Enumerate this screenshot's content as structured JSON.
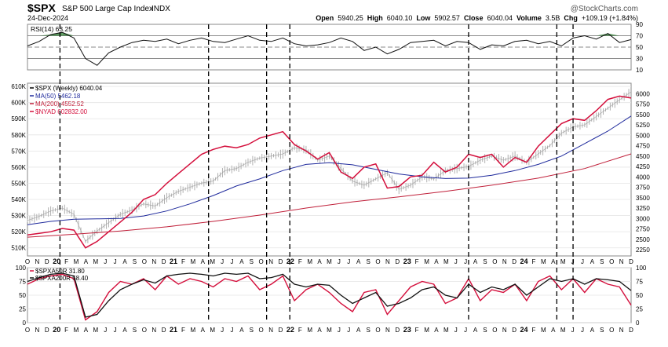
{
  "header": {
    "symbol": "$SPX",
    "name": "S&P 500 Large Cap Index",
    "exchange": "INDX",
    "date": "24-Dec-2024",
    "brand": "@StockCharts.com",
    "quote": {
      "open_label": "Open",
      "open": "5940.25",
      "high_label": "High",
      "high": "6040.10",
      "low_label": "Low",
      "low": "5902.57",
      "close_label": "Close",
      "close": "6040.04",
      "volume_label": "Volume",
      "volume": "3.5B",
      "chg_label": "Chg",
      "chg": "+109.19 (+1.84%)"
    }
  },
  "colors": {
    "price": "#b0b0b0",
    "ma50": "#1f2a9c",
    "ma200": "#c0203a",
    "nyad": "#d40f3c",
    "rsi": "#111111",
    "rsi_fill": "#2e7d32",
    "above50": "#d40f3c",
    "above200": "#111111",
    "grid": "#e4e4e4",
    "vline": "#000000"
  },
  "chart_data": [
    {
      "type": "line",
      "panel": "rsi",
      "legend": [
        {
          "label": "RSI(14) 63.25"
        }
      ],
      "ylim": [
        10,
        90
      ],
      "y_ticks": [
        10,
        30,
        50,
        70,
        90
      ],
      "reference_lines": [
        30,
        50,
        70
      ],
      "x": [
        0,
        5,
        10,
        15,
        20,
        25,
        30,
        35,
        40,
        45,
        50,
        55,
        60,
        65,
        70,
        75,
        80,
        85,
        90,
        95,
        100,
        105,
        110,
        115,
        120,
        125,
        130,
        135,
        140,
        145,
        150,
        155,
        160,
        165,
        170,
        175,
        180,
        185,
        190,
        195,
        200,
        205,
        210,
        215,
        220,
        225,
        230,
        235,
        240,
        245,
        250,
        255,
        260
      ],
      "values": [
        52,
        60,
        72,
        76,
        66,
        30,
        18,
        40,
        50,
        58,
        62,
        60,
        64,
        56,
        62,
        66,
        60,
        58,
        64,
        70,
        62,
        60,
        66,
        56,
        52,
        54,
        58,
        66,
        60,
        44,
        50,
        38,
        46,
        58,
        60,
        62,
        52,
        60,
        58,
        46,
        54,
        52,
        60,
        62,
        56,
        60,
        52,
        66,
        70,
        64,
        74,
        58,
        63.25
      ]
    },
    {
      "type": "line",
      "panel": "price",
      "legend": [
        {
          "label": "$SPX (Weekly) 6040.04",
          "series": "SPX"
        },
        {
          "label": "MA(50) 5462.18",
          "series": "MA(50)"
        },
        {
          "label": "MA(200) 4552.52",
          "series": "MA(200)"
        },
        {
          "label": "$NYAD 602832.00",
          "series": "$NYAD"
        }
      ],
      "left_axis": {
        "ylim": [
          505,
          612
        ],
        "ticks": [
          "510K",
          "520K",
          "530K",
          "540K",
          "550K",
          "560K",
          "570K",
          "580K",
          "590K",
          "600K",
          "610K"
        ]
      },
      "right_axis": {
        "ylim": [
          2100,
          6250
        ],
        "ticks": [
          "2250",
          "2500",
          "2750",
          "3000",
          "3250",
          "3500",
          "3750",
          "4000",
          "4250",
          "4500",
          "4750",
          "5000",
          "5250",
          "5500",
          "5750",
          "6000"
        ]
      },
      "x_axis": {
        "range": [
          0,
          260
        ],
        "tick_labels": [
          "O",
          "N",
          "D",
          "20",
          "F",
          "M",
          "A",
          "M",
          "J",
          "J",
          "A",
          "S",
          "O",
          "N",
          "D",
          "21",
          "F",
          "M",
          "A",
          "M",
          "J",
          "J",
          "A",
          "S",
          "O",
          "N",
          "D",
          "22",
          "F",
          "M",
          "A",
          "M",
          "J",
          "J",
          "A",
          "S",
          "O",
          "N",
          "D",
          "23",
          "F",
          "M",
          "A",
          "M",
          "J",
          "J",
          "A",
          "S",
          "O",
          "N",
          "D",
          "24",
          "F",
          "M",
          "A",
          "M",
          "J",
          "J",
          "A",
          "S",
          "O",
          "N",
          "D"
        ],
        "year_labels": [
          "20",
          "21",
          "22",
          "23",
          "24"
        ]
      },
      "vertical_lines": [
        14,
        78,
        103,
        113,
        190,
        228,
        235
      ],
      "series": [
        {
          "name": "SPX",
          "axis": "right",
          "x": [
            0,
            5,
            10,
            15,
            20,
            25,
            30,
            35,
            40,
            45,
            50,
            55,
            60,
            65,
            70,
            75,
            80,
            85,
            90,
            95,
            100,
            105,
            110,
            115,
            120,
            125,
            130,
            135,
            140,
            145,
            150,
            155,
            160,
            165,
            170,
            175,
            180,
            185,
            190,
            195,
            200,
            205,
            210,
            215,
            220,
            225,
            230,
            235,
            240,
            245,
            250,
            255,
            260
          ],
          "values": [
            2950,
            3050,
            3180,
            3250,
            3100,
            2450,
            2700,
            2900,
            3100,
            3200,
            3350,
            3300,
            3500,
            3650,
            3750,
            3850,
            3900,
            4150,
            4200,
            4350,
            4450,
            4500,
            4550,
            4700,
            4650,
            4400,
            4500,
            4200,
            3900,
            3800,
            3950,
            4100,
            3700,
            3800,
            4000,
            3950,
            4150,
            4200,
            4250,
            4400,
            4500,
            4400,
            4500,
            4350,
            4550,
            4750,
            5050,
            5200,
            5250,
            5450,
            5650,
            5850,
            6040
          ]
        },
        {
          "name": "MA(50)",
          "axis": "right",
          "x": [
            0,
            10,
            20,
            30,
            40,
            50,
            60,
            70,
            80,
            90,
            100,
            110,
            120,
            130,
            140,
            150,
            160,
            170,
            180,
            190,
            200,
            210,
            220,
            230,
            240,
            250,
            260
          ],
          "values": [
            2850,
            2930,
            2980,
            2990,
            3000,
            3060,
            3180,
            3350,
            3550,
            3780,
            3950,
            4150,
            4300,
            4340,
            4290,
            4180,
            4070,
            4000,
            3960,
            3970,
            4040,
            4150,
            4300,
            4500,
            4800,
            5100,
            5462.18
          ]
        },
        {
          "name": "MA(200)",
          "axis": "right",
          "x": [
            0,
            20,
            40,
            60,
            80,
            100,
            120,
            140,
            160,
            180,
            200,
            220,
            240,
            260
          ],
          "values": [
            2550,
            2620,
            2700,
            2800,
            2930,
            3080,
            3250,
            3400,
            3520,
            3650,
            3800,
            3970,
            4200,
            4552.52
          ]
        },
        {
          "name": "$NYAD",
          "axis": "left",
          "x": [
            0,
            5,
            10,
            15,
            20,
            25,
            30,
            35,
            40,
            45,
            50,
            55,
            60,
            65,
            70,
            75,
            80,
            85,
            90,
            95,
            100,
            105,
            110,
            115,
            120,
            125,
            130,
            135,
            140,
            145,
            150,
            155,
            160,
            165,
            170,
            175,
            180,
            185,
            190,
            195,
            200,
            205,
            210,
            215,
            220,
            225,
            230,
            235,
            240,
            245,
            250,
            255,
            260
          ],
          "values": [
            518,
            519,
            520,
            522,
            521,
            510,
            514,
            520,
            526,
            532,
            540,
            543,
            550,
            556,
            562,
            568,
            571,
            573,
            572,
            574,
            578,
            580,
            582,
            574,
            570,
            565,
            569,
            557,
            553,
            560,
            562,
            547,
            548,
            554,
            555,
            563,
            557,
            560,
            568,
            566,
            568,
            560,
            566,
            563,
            573,
            580,
            587,
            590,
            589,
            595,
            602,
            604,
            602.832
          ]
        }
      ]
    },
    {
      "type": "line",
      "panel": "breadth",
      "legend": [
        {
          "label": "$SPXA50R 31.80",
          "series": "$SPXA50R"
        },
        {
          "label": "$SPXA200R 58.40",
          "series": "$SPXA200R"
        }
      ],
      "ylim": [
        0,
        100
      ],
      "y_ticks": [
        0,
        25,
        50,
        75,
        100
      ],
      "series": [
        {
          "name": "$SPXA50R",
          "x": [
            0,
            5,
            10,
            15,
            20,
            25,
            30,
            35,
            40,
            45,
            50,
            55,
            60,
            65,
            70,
            75,
            80,
            85,
            90,
            95,
            100,
            105,
            110,
            115,
            120,
            125,
            130,
            135,
            140,
            145,
            150,
            155,
            160,
            165,
            170,
            175,
            180,
            185,
            190,
            195,
            200,
            205,
            210,
            215,
            220,
            225,
            230,
            235,
            240,
            245,
            250,
            255,
            260
          ],
          "values": [
            70,
            80,
            85,
            88,
            80,
            5,
            20,
            55,
            75,
            70,
            80,
            60,
            85,
            70,
            80,
            75,
            65,
            80,
            75,
            85,
            60,
            70,
            85,
            40,
            60,
            70,
            55,
            35,
            20,
            55,
            60,
            15,
            40,
            65,
            75,
            70,
            35,
            45,
            80,
            40,
            60,
            55,
            70,
            40,
            75,
            85,
            60,
            80,
            55,
            80,
            70,
            65,
            31.8
          ]
        },
        {
          "name": "$SPXA200R",
          "x": [
            0,
            5,
            10,
            15,
            20,
            25,
            30,
            35,
            40,
            45,
            50,
            55,
            60,
            65,
            70,
            75,
            80,
            85,
            90,
            95,
            100,
            105,
            110,
            115,
            120,
            125,
            130,
            135,
            140,
            145,
            150,
            155,
            160,
            165,
            170,
            175,
            180,
            185,
            190,
            195,
            200,
            205,
            210,
            215,
            220,
            225,
            230,
            235,
            240,
            245,
            250,
            255,
            260
          ],
          "values": [
            75,
            82,
            88,
            90,
            85,
            10,
            15,
            40,
            60,
            70,
            78,
            72,
            85,
            88,
            90,
            88,
            85,
            90,
            88,
            90,
            80,
            82,
            88,
            70,
            65,
            70,
            68,
            50,
            35,
            45,
            55,
            30,
            35,
            45,
            60,
            65,
            50,
            45,
            70,
            55,
            65,
            60,
            70,
            50,
            65,
            80,
            75,
            80,
            70,
            80,
            78,
            75,
            58.4
          ]
        }
      ]
    }
  ]
}
